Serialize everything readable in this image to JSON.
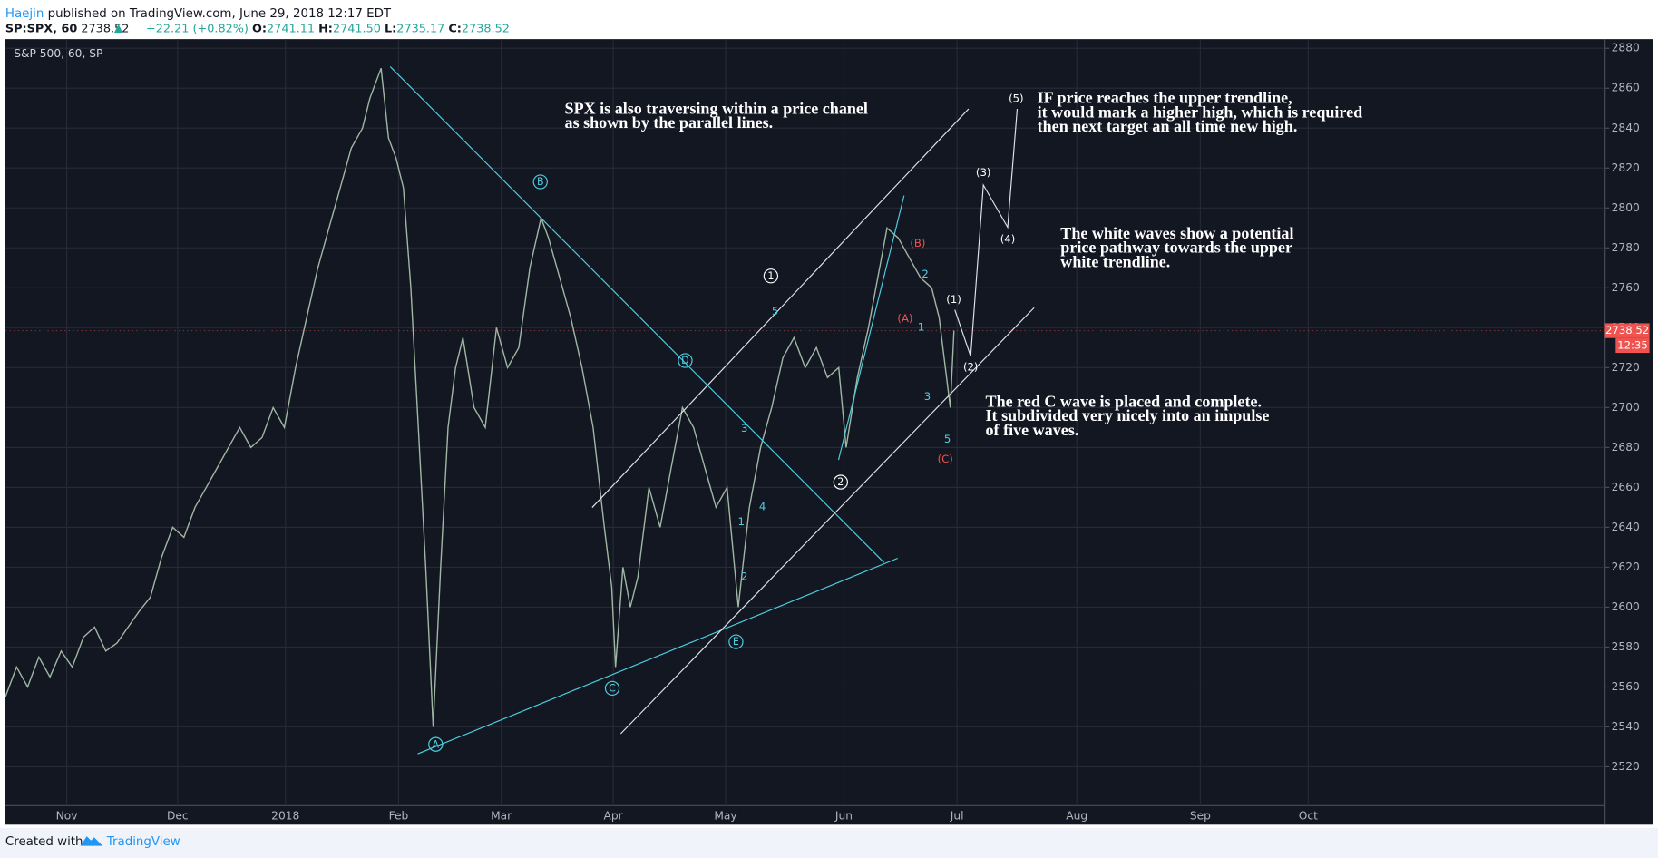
{
  "header": {
    "author": "Haejin",
    "published": "published on TradingView.com, June 29, 2018 12:17 EDT",
    "symbol": "SP:SPX, 60",
    "last": "2738.52",
    "change": "+22.21 (+0.82%)",
    "open_label": "O:",
    "open": "2741.11",
    "high_label": "H:",
    "high": "2741.50",
    "low_label": "L:",
    "low": "2735.17",
    "close_label": "C:",
    "close": "2738.52"
  },
  "chart_data": {
    "type": "line",
    "title": "S&P 500, 60, SP",
    "color": "#9fb8a4",
    "x": [
      0,
      3,
      6,
      9,
      12,
      15,
      18,
      21,
      24,
      27,
      30,
      33,
      36,
      39,
      42,
      45,
      48,
      51,
      54,
      57,
      60,
      63,
      66,
      69,
      72,
      75,
      78,
      81,
      84,
      87,
      90,
      93,
      96,
      98,
      101,
      103,
      105,
      107,
      109,
      111,
      113,
      115,
      117,
      119,
      121,
      123,
      126,
      129,
      132,
      135,
      138,
      141,
      144,
      146,
      149,
      152,
      155,
      158,
      161,
      163,
      164,
      166,
      168,
      170,
      173,
      176,
      179,
      182,
      185,
      188,
      191,
      194,
      197,
      200,
      203,
      206,
      209,
      212,
      215,
      218,
      221,
      224,
      226,
      229,
      232,
      235,
      237,
      240,
      243,
      246,
      249,
      251,
      253,
      254,
      255
    ],
    "values": [
      2555,
      2570,
      2560,
      2575,
      2565,
      2578,
      2570,
      2585,
      2590,
      2578,
      2582,
      2590,
      2598,
      2605,
      2625,
      2640,
      2635,
      2650,
      2660,
      2670,
      2680,
      2690,
      2680,
      2685,
      2700,
      2690,
      2720,
      2745,
      2770,
      2790,
      2810,
      2830,
      2840,
      2855,
      2870,
      2835,
      2825,
      2810,
      2760,
      2690,
      2620,
      2540,
      2620,
      2690,
      2720,
      2735,
      2700,
      2690,
      2740,
      2720,
      2730,
      2770,
      2795,
      2785,
      2765,
      2745,
      2720,
      2690,
      2640,
      2610,
      2570,
      2620,
      2600,
      2615,
      2660,
      2640,
      2670,
      2700,
      2690,
      2670,
      2650,
      2660,
      2600,
      2650,
      2680,
      2700,
      2725,
      2735,
      2720,
      2730,
      2715,
      2720,
      2680,
      2715,
      2740,
      2770,
      2790,
      2785,
      2775,
      2765,
      2760,
      2745,
      2715,
      2700,
      2738.52
    ],
    "xlim": [
      0,
      430
    ],
    "xticks": [
      {
        "value": 16.5,
        "label": "Nov"
      },
      {
        "value": 46.3,
        "label": "Dec"
      },
      {
        "value": 75.3,
        "label": "2018"
      },
      {
        "value": 105.7,
        "label": "Feb"
      },
      {
        "value": 133.3,
        "label": "Mar"
      },
      {
        "value": 163.4,
        "label": "Apr"
      },
      {
        "value": 193.6,
        "label": "May"
      },
      {
        "value": 225.4,
        "label": "Jun"
      },
      {
        "value": 255.8,
        "label": "Jul"
      },
      {
        "value": 288,
        "label": "Aug"
      },
      {
        "value": 321.2,
        "label": "Sep"
      },
      {
        "value": 350.2,
        "label": "Oct"
      }
    ],
    "ylim": [
      2491,
      2883
    ],
    "yticks": [
      2520,
      2540,
      2560,
      2580,
      2600,
      2620,
      2640,
      2660,
      2680,
      2700,
      2720,
      2740,
      2760,
      2780,
      2800,
      2820,
      2840,
      2860,
      2880
    ],
    "grid": true,
    "countdown": "12:35",
    "wave_labels": [
      {
        "text": "A"
      },
      {
        "text": "B"
      },
      {
        "text": "C"
      },
      {
        "text": "D"
      },
      {
        "text": "E"
      },
      {
        "text": "1"
      },
      {
        "text": "2"
      },
      {
        "text": "5"
      },
      {
        "text": "3"
      },
      {
        "text": "4"
      },
      {
        "text": "1"
      },
      {
        "text": "2"
      },
      {
        "text": "2"
      },
      {
        "text": "1"
      },
      {
        "text": "3"
      },
      {
        "text": "5"
      },
      {
        "text": "(B)"
      },
      {
        "text": "(A)"
      },
      {
        "text": "(C)"
      },
      {
        "text": "(1)"
      },
      {
        "text": "(2)"
      },
      {
        "text": "(3)"
      },
      {
        "text": "(4)"
      },
      {
        "text": "(5)"
      }
    ],
    "notes": [
      {
        "lines": [
          "SPX is also traversing within a price chanel",
          "as shown by the parallel lines."
        ]
      },
      {
        "lines": [
          "IF price reaches the upper trendline,",
          "it would mark a higher high, which is required",
          "then next target an all time new high."
        ]
      },
      {
        "lines": [
          "The white waves show a potential",
          "price pathway towards the upper",
          "white trendline."
        ]
      },
      {
        "lines": [
          "The red C wave is placed and complete.",
          "It subdivided very nicely into an impulse",
          "of five waves."
        ]
      }
    ]
  },
  "footer": {
    "created": "Created with",
    "brand": "TradingView"
  }
}
